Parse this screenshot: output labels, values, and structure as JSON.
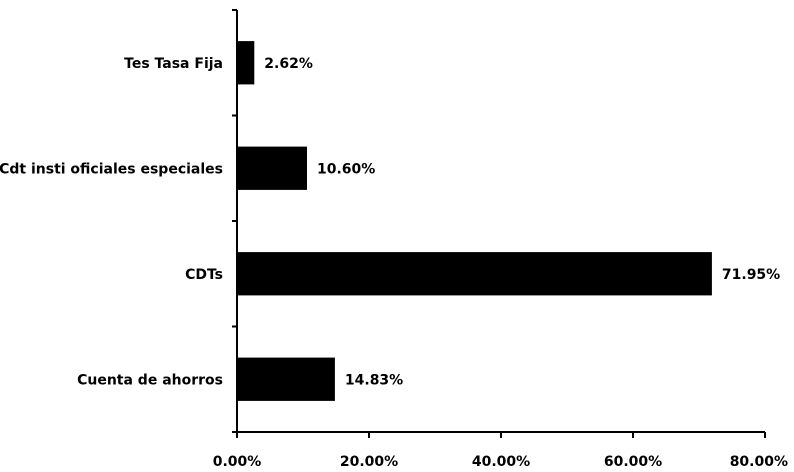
{
  "chart_data": {
    "type": "bar",
    "orientation": "horizontal",
    "categories": [
      "Tes Tasa  Fija",
      "Cdt insti oficiales especiales",
      "CDTs",
      "Cuenta de ahorros"
    ],
    "values": [
      2.62,
      10.6,
      71.95,
      14.83
    ],
    "data_labels": [
      "2.62%",
      "10.60%",
      "71.95%",
      "14.83%"
    ],
    "xlim": [
      0,
      80
    ],
    "x_ticks": [
      0,
      20,
      40,
      60,
      80
    ],
    "x_tick_labels": [
      "0.00%",
      "20.00%",
      "40.00%",
      "60.00%",
      "80.00%"
    ],
    "bar_color": "#000000",
    "grid": false,
    "legend": "none"
  }
}
